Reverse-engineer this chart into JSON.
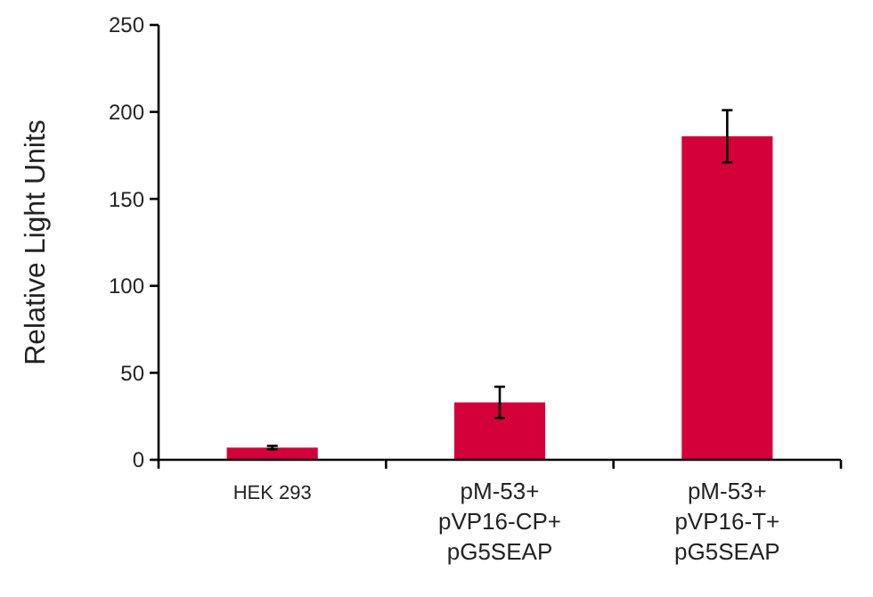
{
  "chart_data": {
    "type": "bar",
    "ylabel": "Relative Light Units",
    "categories": [
      "HEK 293",
      "pM-53+\npVP16-CP+\npG5SEAP",
      "pM-53+\npVP16-T+\npG5SEAP"
    ],
    "values": [
      7,
      33,
      186
    ],
    "errors": [
      1,
      9,
      15
    ],
    "color": "#d4003a",
    "ylim": [
      0,
      250
    ],
    "yticks": [
      0,
      50,
      100,
      150,
      200,
      250
    ],
    "grid": false
  }
}
